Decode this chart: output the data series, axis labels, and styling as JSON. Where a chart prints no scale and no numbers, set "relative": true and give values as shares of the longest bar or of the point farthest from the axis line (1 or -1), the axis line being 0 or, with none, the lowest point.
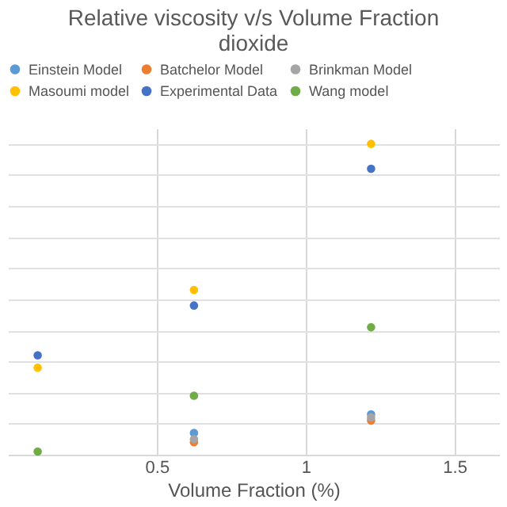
{
  "chart_data": {
    "type": "scatter",
    "title": "Relative viscosity v/s Volume Fraction\ndioxide",
    "xlabel": "Volume Fraction (%)",
    "relative": true,
    "x": [
      0.1,
      0.625,
      1.22
    ],
    "xlim": [
      0,
      1.65
    ],
    "xticks": [
      0.5,
      1,
      1.5
    ],
    "grid": true,
    "legend": "top",
    "marker": "circle",
    "series": [
      {
        "name": "Einstein Model",
        "color": "#5b9bd5",
        "values": [
          null,
          0.07,
          0.13
        ]
      },
      {
        "name": "Batchelor Model",
        "color": "#ed7d31",
        "values": [
          null,
          0.04,
          0.11
        ]
      },
      {
        "name": "Brinkman Model",
        "color": "#a5a5a5",
        "values": [
          null,
          0.05,
          0.12
        ]
      },
      {
        "name": "Masoumi model",
        "color": "#ffc000",
        "values": [
          0.28,
          0.53,
          1
        ]
      },
      {
        "name": "Experimental Data",
        "color": "#4472c4",
        "values": [
          0.32,
          0.48,
          0.92
        ]
      },
      {
        "name": "Wang model",
        "color": "#70ad47",
        "values": [
          0.01,
          0.19,
          0.41
        ]
      }
    ]
  }
}
